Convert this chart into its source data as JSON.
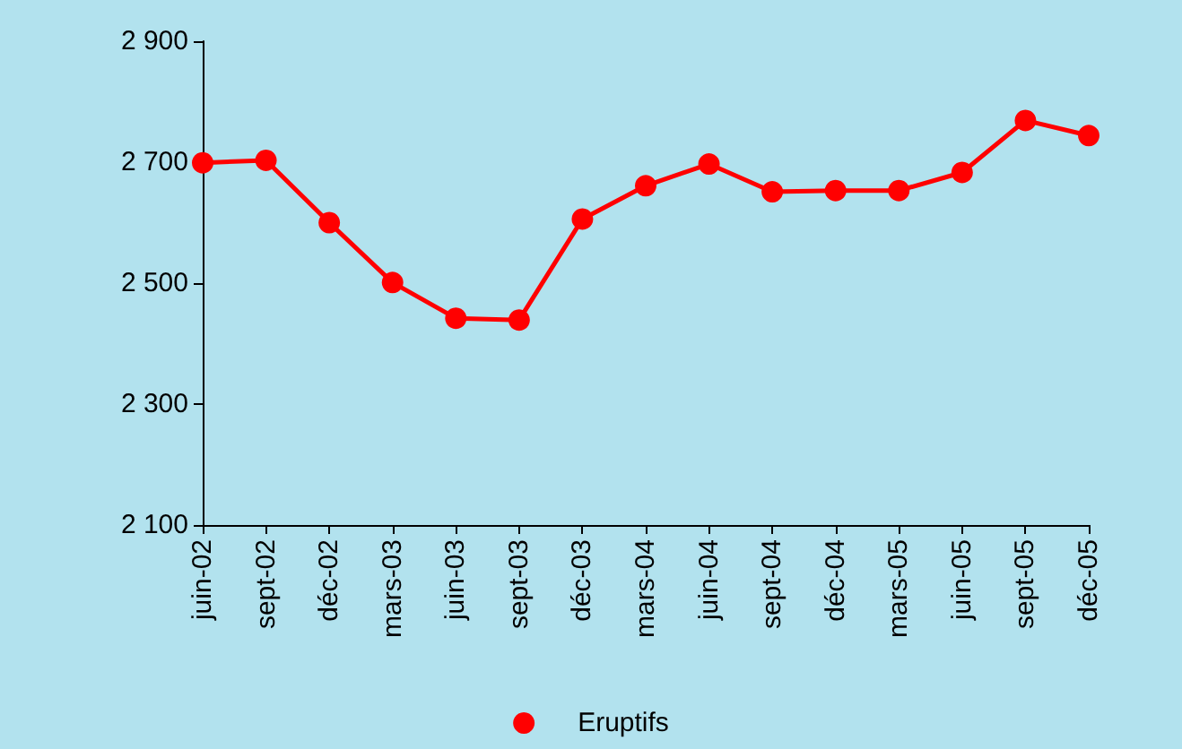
{
  "chart_data": {
    "type": "line",
    "categories": [
      "juin-02",
      "sept-02",
      "déc-02",
      "mars-03",
      "juin-03",
      "sept-03",
      "déc-03",
      "mars-04",
      "juin-04",
      "sept-04",
      "déc-04",
      "mars-05",
      "juin-05",
      "sept-05",
      "déc-05"
    ],
    "series": [
      {
        "name": "Eruptifs",
        "color": "#ff0000",
        "values": [
          2699,
          2703,
          2600,
          2501,
          2442,
          2439,
          2606,
          2661,
          2697,
          2651,
          2653,
          2653,
          2683,
          2769,
          2744
        ]
      }
    ],
    "ylim": [
      2100,
      2900
    ],
    "yticks": [
      {
        "value": 2100,
        "label": "2 100"
      },
      {
        "value": 2300,
        "label": "2 300"
      },
      {
        "value": 2500,
        "label": "2 500"
      },
      {
        "value": 2700,
        "label": "2 700"
      },
      {
        "value": 2900,
        "label": "2 900"
      }
    ],
    "grid": false,
    "legend": "bottom",
    "marker": "circle",
    "line_style": "solid"
  }
}
